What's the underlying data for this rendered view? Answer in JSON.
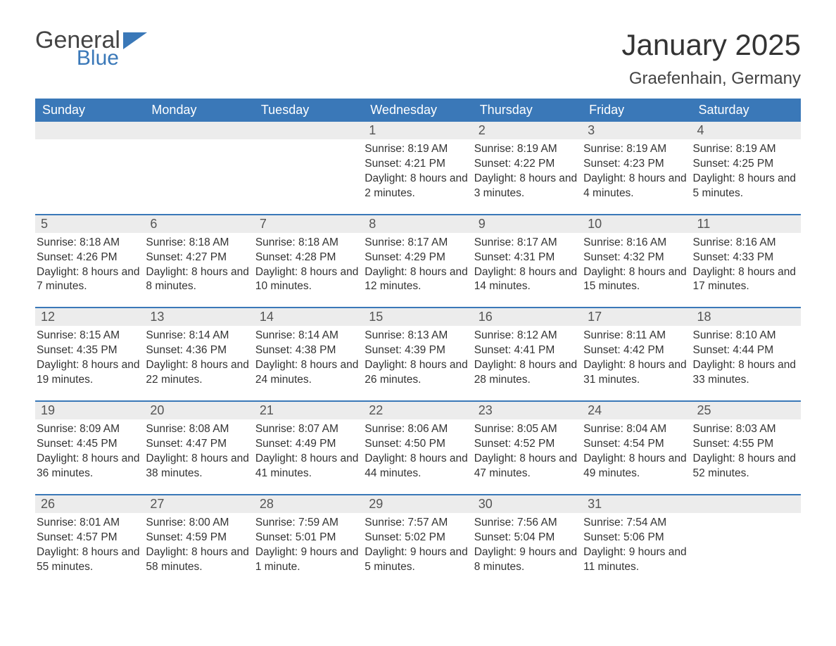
{
  "logo": {
    "word1": "General",
    "word2": "Blue"
  },
  "title": "January 2025",
  "location": "Graefenhain, Germany",
  "colors": {
    "header_bg": "#3a78b8",
    "header_text": "#ffffff",
    "daynum_bg": "#ececec",
    "text": "#333333",
    "rule": "#3a78b8"
  },
  "day_labels": [
    "Sunday",
    "Monday",
    "Tuesday",
    "Wednesday",
    "Thursday",
    "Friday",
    "Saturday"
  ],
  "weeks": [
    [
      {
        "n": "",
        "sr": "",
        "ss": "",
        "dl": ""
      },
      {
        "n": "",
        "sr": "",
        "ss": "",
        "dl": ""
      },
      {
        "n": "",
        "sr": "",
        "ss": "",
        "dl": ""
      },
      {
        "n": "1",
        "sr": "Sunrise: 8:19 AM",
        "ss": "Sunset: 4:21 PM",
        "dl": "Daylight: 8 hours and 2 minutes."
      },
      {
        "n": "2",
        "sr": "Sunrise: 8:19 AM",
        "ss": "Sunset: 4:22 PM",
        "dl": "Daylight: 8 hours and 3 minutes."
      },
      {
        "n": "3",
        "sr": "Sunrise: 8:19 AM",
        "ss": "Sunset: 4:23 PM",
        "dl": "Daylight: 8 hours and 4 minutes."
      },
      {
        "n": "4",
        "sr": "Sunrise: 8:19 AM",
        "ss": "Sunset: 4:25 PM",
        "dl": "Daylight: 8 hours and 5 minutes."
      }
    ],
    [
      {
        "n": "5",
        "sr": "Sunrise: 8:18 AM",
        "ss": "Sunset: 4:26 PM",
        "dl": "Daylight: 8 hours and 7 minutes."
      },
      {
        "n": "6",
        "sr": "Sunrise: 8:18 AM",
        "ss": "Sunset: 4:27 PM",
        "dl": "Daylight: 8 hours and 8 minutes."
      },
      {
        "n": "7",
        "sr": "Sunrise: 8:18 AM",
        "ss": "Sunset: 4:28 PM",
        "dl": "Daylight: 8 hours and 10 minutes."
      },
      {
        "n": "8",
        "sr": "Sunrise: 8:17 AM",
        "ss": "Sunset: 4:29 PM",
        "dl": "Daylight: 8 hours and 12 minutes."
      },
      {
        "n": "9",
        "sr": "Sunrise: 8:17 AM",
        "ss": "Sunset: 4:31 PM",
        "dl": "Daylight: 8 hours and 14 minutes."
      },
      {
        "n": "10",
        "sr": "Sunrise: 8:16 AM",
        "ss": "Sunset: 4:32 PM",
        "dl": "Daylight: 8 hours and 15 minutes."
      },
      {
        "n": "11",
        "sr": "Sunrise: 8:16 AM",
        "ss": "Sunset: 4:33 PM",
        "dl": "Daylight: 8 hours and 17 minutes."
      }
    ],
    [
      {
        "n": "12",
        "sr": "Sunrise: 8:15 AM",
        "ss": "Sunset: 4:35 PM",
        "dl": "Daylight: 8 hours and 19 minutes."
      },
      {
        "n": "13",
        "sr": "Sunrise: 8:14 AM",
        "ss": "Sunset: 4:36 PM",
        "dl": "Daylight: 8 hours and 22 minutes."
      },
      {
        "n": "14",
        "sr": "Sunrise: 8:14 AM",
        "ss": "Sunset: 4:38 PM",
        "dl": "Daylight: 8 hours and 24 minutes."
      },
      {
        "n": "15",
        "sr": "Sunrise: 8:13 AM",
        "ss": "Sunset: 4:39 PM",
        "dl": "Daylight: 8 hours and 26 minutes."
      },
      {
        "n": "16",
        "sr": "Sunrise: 8:12 AM",
        "ss": "Sunset: 4:41 PM",
        "dl": "Daylight: 8 hours and 28 minutes."
      },
      {
        "n": "17",
        "sr": "Sunrise: 8:11 AM",
        "ss": "Sunset: 4:42 PM",
        "dl": "Daylight: 8 hours and 31 minutes."
      },
      {
        "n": "18",
        "sr": "Sunrise: 8:10 AM",
        "ss": "Sunset: 4:44 PM",
        "dl": "Daylight: 8 hours and 33 minutes."
      }
    ],
    [
      {
        "n": "19",
        "sr": "Sunrise: 8:09 AM",
        "ss": "Sunset: 4:45 PM",
        "dl": "Daylight: 8 hours and 36 minutes."
      },
      {
        "n": "20",
        "sr": "Sunrise: 8:08 AM",
        "ss": "Sunset: 4:47 PM",
        "dl": "Daylight: 8 hours and 38 minutes."
      },
      {
        "n": "21",
        "sr": "Sunrise: 8:07 AM",
        "ss": "Sunset: 4:49 PM",
        "dl": "Daylight: 8 hours and 41 minutes."
      },
      {
        "n": "22",
        "sr": "Sunrise: 8:06 AM",
        "ss": "Sunset: 4:50 PM",
        "dl": "Daylight: 8 hours and 44 minutes."
      },
      {
        "n": "23",
        "sr": "Sunrise: 8:05 AM",
        "ss": "Sunset: 4:52 PM",
        "dl": "Daylight: 8 hours and 47 minutes."
      },
      {
        "n": "24",
        "sr": "Sunrise: 8:04 AM",
        "ss": "Sunset: 4:54 PM",
        "dl": "Daylight: 8 hours and 49 minutes."
      },
      {
        "n": "25",
        "sr": "Sunrise: 8:03 AM",
        "ss": "Sunset: 4:55 PM",
        "dl": "Daylight: 8 hours and 52 minutes."
      }
    ],
    [
      {
        "n": "26",
        "sr": "Sunrise: 8:01 AM",
        "ss": "Sunset: 4:57 PM",
        "dl": "Daylight: 8 hours and 55 minutes."
      },
      {
        "n": "27",
        "sr": "Sunrise: 8:00 AM",
        "ss": "Sunset: 4:59 PM",
        "dl": "Daylight: 8 hours and 58 minutes."
      },
      {
        "n": "28",
        "sr": "Sunrise: 7:59 AM",
        "ss": "Sunset: 5:01 PM",
        "dl": "Daylight: 9 hours and 1 minute."
      },
      {
        "n": "29",
        "sr": "Sunrise: 7:57 AM",
        "ss": "Sunset: 5:02 PM",
        "dl": "Daylight: 9 hours and 5 minutes."
      },
      {
        "n": "30",
        "sr": "Sunrise: 7:56 AM",
        "ss": "Sunset: 5:04 PM",
        "dl": "Daylight: 9 hours and 8 minutes."
      },
      {
        "n": "31",
        "sr": "Sunrise: 7:54 AM",
        "ss": "Sunset: 5:06 PM",
        "dl": "Daylight: 9 hours and 11 minutes."
      },
      {
        "n": "",
        "sr": "",
        "ss": "",
        "dl": ""
      }
    ]
  ]
}
